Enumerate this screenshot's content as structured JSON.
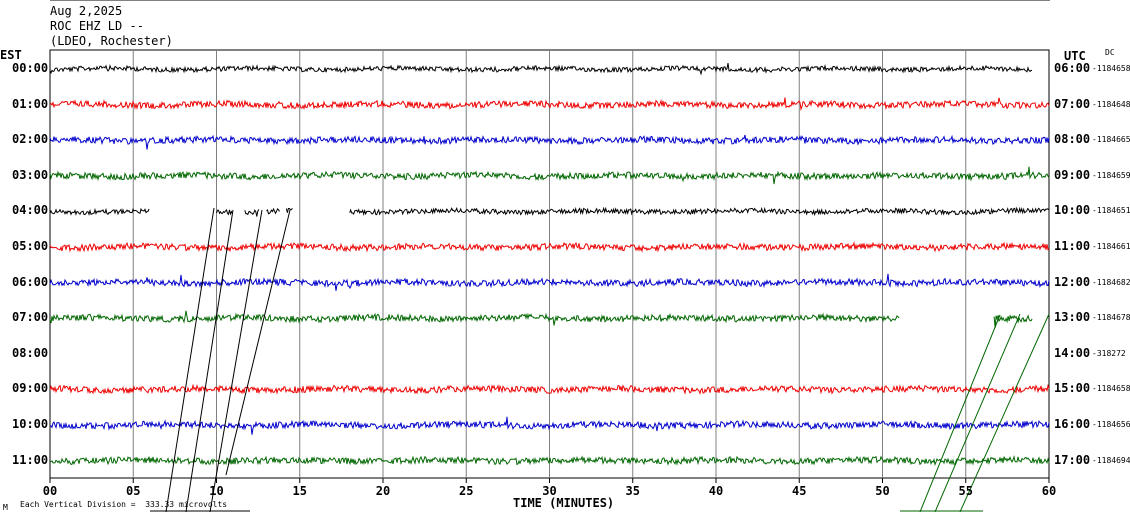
{
  "header": {
    "date": "Aug 2,2025",
    "station": "ROC EHZ LD --",
    "network": "(LDEO, Rochester)"
  },
  "colors": {
    "trace_black": "#000000",
    "trace_red": "#ee0000",
    "trace_blue": "#0000cc",
    "trace_green": "#006600",
    "grid": "#808080"
  },
  "chart_data": {
    "type": "line",
    "left_axis_title": "EST",
    "right_axis_title": "UTC",
    "right_axis_note": "DC",
    "xlabel": "TIME (MINUTES)",
    "x_ticks": [
      "00",
      "05",
      "10",
      "15",
      "20",
      "25",
      "30",
      "35",
      "40",
      "45",
      "50",
      "55",
      "60"
    ],
    "xlim": [
      0,
      60
    ],
    "scale_note": "Each Vertical Division =  333.33 microvolts",
    "corner_mark": "M",
    "rows": [
      {
        "est": "00:00",
        "utc": "06:00",
        "dc": "-1184658",
        "color": "black",
        "segments": [
          [
            0,
            59
          ]
        ]
      },
      {
        "est": "01:00",
        "utc": "07:00",
        "dc": "-1184648",
        "color": "red",
        "segments": [
          [
            0,
            60
          ]
        ]
      },
      {
        "est": "02:00",
        "utc": "08:00",
        "dc": "-1184665",
        "color": "blue",
        "segments": [
          [
            0,
            60
          ]
        ]
      },
      {
        "est": "03:00",
        "utc": "09:00",
        "dc": "-1184659",
        "color": "green",
        "segments": [
          [
            0,
            60
          ]
        ]
      },
      {
        "est": "04:00",
        "utc": "10:00",
        "dc": "-1184651",
        "color": "black",
        "segments": [
          [
            0,
            6
          ],
          [
            10,
            11
          ],
          [
            11.7,
            12.6
          ],
          [
            13,
            13.8
          ],
          [
            14.2,
            14.6
          ],
          [
            18,
            60
          ]
        ]
      },
      {
        "est": "05:00",
        "utc": "11:00",
        "dc": "-1184661",
        "color": "red",
        "segments": [
          [
            0,
            60
          ]
        ]
      },
      {
        "est": "06:00",
        "utc": "12:00",
        "dc": "-1184682",
        "color": "blue",
        "segments": [
          [
            0,
            60
          ]
        ]
      },
      {
        "est": "07:00",
        "utc": "13:00",
        "dc": "-1184678",
        "color": "green",
        "segments": [
          [
            0,
            51
          ],
          [
            56.7,
            59
          ]
        ]
      },
      {
        "est": "08:00",
        "utc": "14:00",
        "dc": "-318272",
        "color": "none",
        "segments": []
      },
      {
        "est": "09:00",
        "utc": "15:00",
        "dc": "-1184658",
        "color": "red",
        "segments": [
          [
            0,
            60
          ]
        ]
      },
      {
        "est": "10:00",
        "utc": "16:00",
        "dc": "-1184656",
        "color": "blue",
        "segments": [
          [
            0,
            60
          ]
        ]
      },
      {
        "est": "11:00",
        "utc": "17:00",
        "dc": "-1184694",
        "color": "green",
        "segments": [
          [
            0,
            60
          ]
        ]
      }
    ]
  }
}
